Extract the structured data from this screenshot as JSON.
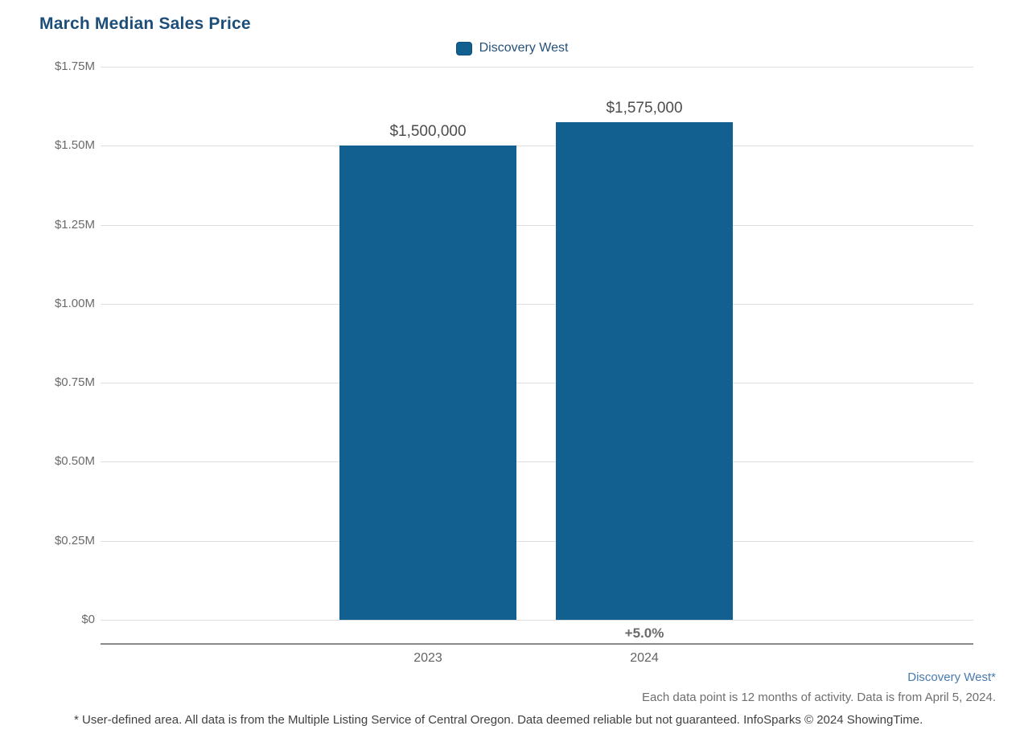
{
  "title": "March Median Sales Price",
  "legend": {
    "label": "Discovery West",
    "swatch_color": "#11608f"
  },
  "chart_data": {
    "type": "bar",
    "title": "March Median Sales Price",
    "categories": [
      "2023",
      "2024"
    ],
    "values": [
      1500000,
      1575000
    ],
    "value_labels": [
      "$1,500,000",
      "$1,575,000"
    ],
    "change_labels": [
      "",
      "+5.0%"
    ],
    "series_name": "Discovery West",
    "bar_color": "#11608f",
    "xlabel": "",
    "ylabel": "",
    "ylim": [
      0,
      1750000
    ],
    "y_ticks": [
      "$1.75M",
      "$1.50M",
      "$1.25M",
      "$1.00M",
      "$0.75M",
      "$0.50M",
      "$0.25M",
      "$0"
    ],
    "grid": "horizontal",
    "legend_position": "top-center"
  },
  "footer": {
    "area_label": "Discovery West*",
    "data_note": "Each data point is 12 months of activity. Data is from April 5, 2024.",
    "disclaimer": "* User-defined area. All data is from the Multiple Listing Service of Central Oregon. Data deemed reliable but not guaranteed. InfoSparks © 2024 ShowingTime."
  }
}
